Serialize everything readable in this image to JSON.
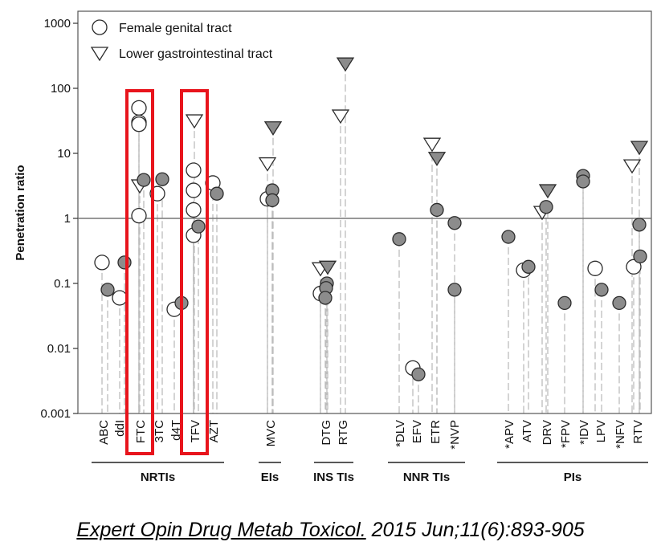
{
  "chart_data": {
    "type": "scatter",
    "ylabel": "Penetration ratio",
    "yscale": "log",
    "ylim": [
      0.001,
      1000
    ],
    "yticks": [
      "0.001",
      "0.01",
      "0.1",
      "1",
      "10",
      "100",
      "1000"
    ],
    "reference_line": 1,
    "grid": false,
    "legend_position": "top-left",
    "legend": [
      {
        "name": "Female genital tract",
        "marker": "circle"
      },
      {
        "name": "Lower gastrointestinal tract",
        "marker": "triangle-down"
      }
    ],
    "categories": [
      "ABC",
      "ddI",
      "FTC",
      "3TC",
      "d4T",
      "TFV",
      "AZT",
      "MVC",
      "DTG",
      "RTG",
      "*DLV",
      "EFV",
      "ETR",
      "*NVP",
      "*APV",
      "ATV",
      "DRV",
      "*FPV",
      "*IDV",
      "LPV",
      "*NFV",
      "RTV"
    ],
    "groups": [
      {
        "label": "NRTIs",
        "categories": [
          "ABC",
          "ddI",
          "FTC",
          "3TC",
          "d4T",
          "TFV",
          "AZT"
        ]
      },
      {
        "label": "EIs",
        "categories": [
          "MVC"
        ]
      },
      {
        "label": "INS TIs",
        "categories": [
          "DTG",
          "RTG"
        ]
      },
      {
        "label": "NNR TIs",
        "categories": [
          "*DLV",
          "EFV",
          "ETR",
          "*NVP"
        ]
      },
      {
        "label": "PIs",
        "categories": [
          "*APV",
          "ATV",
          "DRV",
          "*FPV",
          "*IDV",
          "LPV",
          "*NFV",
          "RTV"
        ]
      }
    ],
    "highlighted_categories": [
      "FTC",
      "TFV"
    ],
    "highlight_color": "#e8141c",
    "series": [
      {
        "name": "Female genital tract",
        "marker": "circle",
        "points": [
          {
            "category": "ABC",
            "value": 0.21,
            "fill": "open"
          },
          {
            "category": "ABC",
            "value": 0.08,
            "fill": "filled"
          },
          {
            "category": "ddI",
            "value": 0.06,
            "fill": "open"
          },
          {
            "category": "ddI",
            "value": 0.21,
            "fill": "filled"
          },
          {
            "category": "FTC",
            "value": 50,
            "fill": "open"
          },
          {
            "category": "FTC",
            "value": 30,
            "fill": "open"
          },
          {
            "category": "FTC",
            "value": 28,
            "fill": "open"
          },
          {
            "category": "FTC",
            "value": 1.1,
            "fill": "open"
          },
          {
            "category": "FTC",
            "value": 3.9,
            "fill": "filled"
          },
          {
            "category": "3TC",
            "value": 2.4,
            "fill": "open"
          },
          {
            "category": "3TC",
            "value": 4.0,
            "fill": "filled"
          },
          {
            "category": "d4T",
            "value": 0.04,
            "fill": "open"
          },
          {
            "category": "d4T",
            "value": 0.05,
            "fill": "filled"
          },
          {
            "category": "TFV",
            "value": 5.5,
            "fill": "open"
          },
          {
            "category": "TFV",
            "value": 2.7,
            "fill": "open"
          },
          {
            "category": "TFV",
            "value": 1.35,
            "fill": "open"
          },
          {
            "category": "TFV",
            "value": 0.55,
            "fill": "open"
          },
          {
            "category": "TFV",
            "value": 0.75,
            "fill": "filled"
          },
          {
            "category": "AZT",
            "value": 3.5,
            "fill": "open"
          },
          {
            "category": "AZT",
            "value": 2.4,
            "fill": "filled"
          },
          {
            "category": "MVC",
            "value": 2.0,
            "fill": "open"
          },
          {
            "category": "MVC",
            "value": 2.7,
            "fill": "filled"
          },
          {
            "category": "MVC",
            "value": 1.9,
            "fill": "filled"
          },
          {
            "category": "DTG",
            "value": 0.07,
            "fill": "open"
          },
          {
            "category": "DTG",
            "value": 0.1,
            "fill": "filled"
          },
          {
            "category": "DTG",
            "value": 0.085,
            "fill": "filled"
          },
          {
            "category": "DTG",
            "value": 0.06,
            "fill": "filled"
          },
          {
            "category": "*DLV",
            "value": 0.48,
            "fill": "filled"
          },
          {
            "category": "EFV",
            "value": 0.005,
            "fill": "open"
          },
          {
            "category": "EFV",
            "value": 0.004,
            "fill": "filled"
          },
          {
            "category": "ETR",
            "value": 1.35,
            "fill": "filled"
          },
          {
            "category": "*NVP",
            "value": 0.85,
            "fill": "filled"
          },
          {
            "category": "*NVP",
            "value": 0.08,
            "fill": "filled"
          },
          {
            "category": "*APV",
            "value": 0.52,
            "fill": "filled"
          },
          {
            "category": "ATV",
            "value": 0.16,
            "fill": "open"
          },
          {
            "category": "ATV",
            "value": 0.18,
            "fill": "filled"
          },
          {
            "category": "DRV",
            "value": 1.5,
            "fill": "filled"
          },
          {
            "category": "*FPV",
            "value": 0.05,
            "fill": "filled"
          },
          {
            "category": "*IDV",
            "value": 4.5,
            "fill": "filled"
          },
          {
            "category": "*IDV",
            "value": 3.7,
            "fill": "filled"
          },
          {
            "category": "LPV",
            "value": 0.17,
            "fill": "open"
          },
          {
            "category": "LPV",
            "value": 0.08,
            "fill": "filled"
          },
          {
            "category": "*NFV",
            "value": 0.05,
            "fill": "filled"
          },
          {
            "category": "RTV",
            "value": 0.18,
            "fill": "open"
          },
          {
            "category": "RTV",
            "value": 0.8,
            "fill": "filled"
          },
          {
            "category": "RTV",
            "value": 0.26,
            "fill": "filled"
          }
        ]
      },
      {
        "name": "Lower gastrointestinal tract",
        "marker": "triangle-down",
        "points": [
          {
            "category": "FTC",
            "value": 3.2,
            "fill": "open"
          },
          {
            "category": "TFV",
            "value": 32,
            "fill": "open"
          },
          {
            "category": "MVC",
            "value": 7.0,
            "fill": "open"
          },
          {
            "category": "MVC",
            "value": 25,
            "fill": "filled"
          },
          {
            "category": "DTG",
            "value": 0.17,
            "fill": "open"
          },
          {
            "category": "DTG",
            "value": 0.18,
            "fill": "filled"
          },
          {
            "category": "RTG",
            "value": 38,
            "fill": "open"
          },
          {
            "category": "RTG",
            "value": 240,
            "fill": "filled"
          },
          {
            "category": "ETR",
            "value": 14,
            "fill": "open"
          },
          {
            "category": "ETR",
            "value": 8.5,
            "fill": "filled"
          },
          {
            "category": "DRV",
            "value": 1.25,
            "fill": "open"
          },
          {
            "category": "DRV",
            "value": 2.7,
            "fill": "filled"
          },
          {
            "category": "RTV",
            "value": 6.5,
            "fill": "open"
          },
          {
            "category": "RTV",
            "value": 12.5,
            "fill": "filled"
          }
        ]
      }
    ],
    "colors": {
      "open_fill": "#ffffff",
      "filled": "#8c8c8c",
      "stroke": "#2b2b2b",
      "dashed_line": "#bdbdbd"
    }
  },
  "citation": {
    "journal": "Expert Opin Drug Metab Toxicol.",
    "details": "2015 Jun;11(6):893-905"
  }
}
